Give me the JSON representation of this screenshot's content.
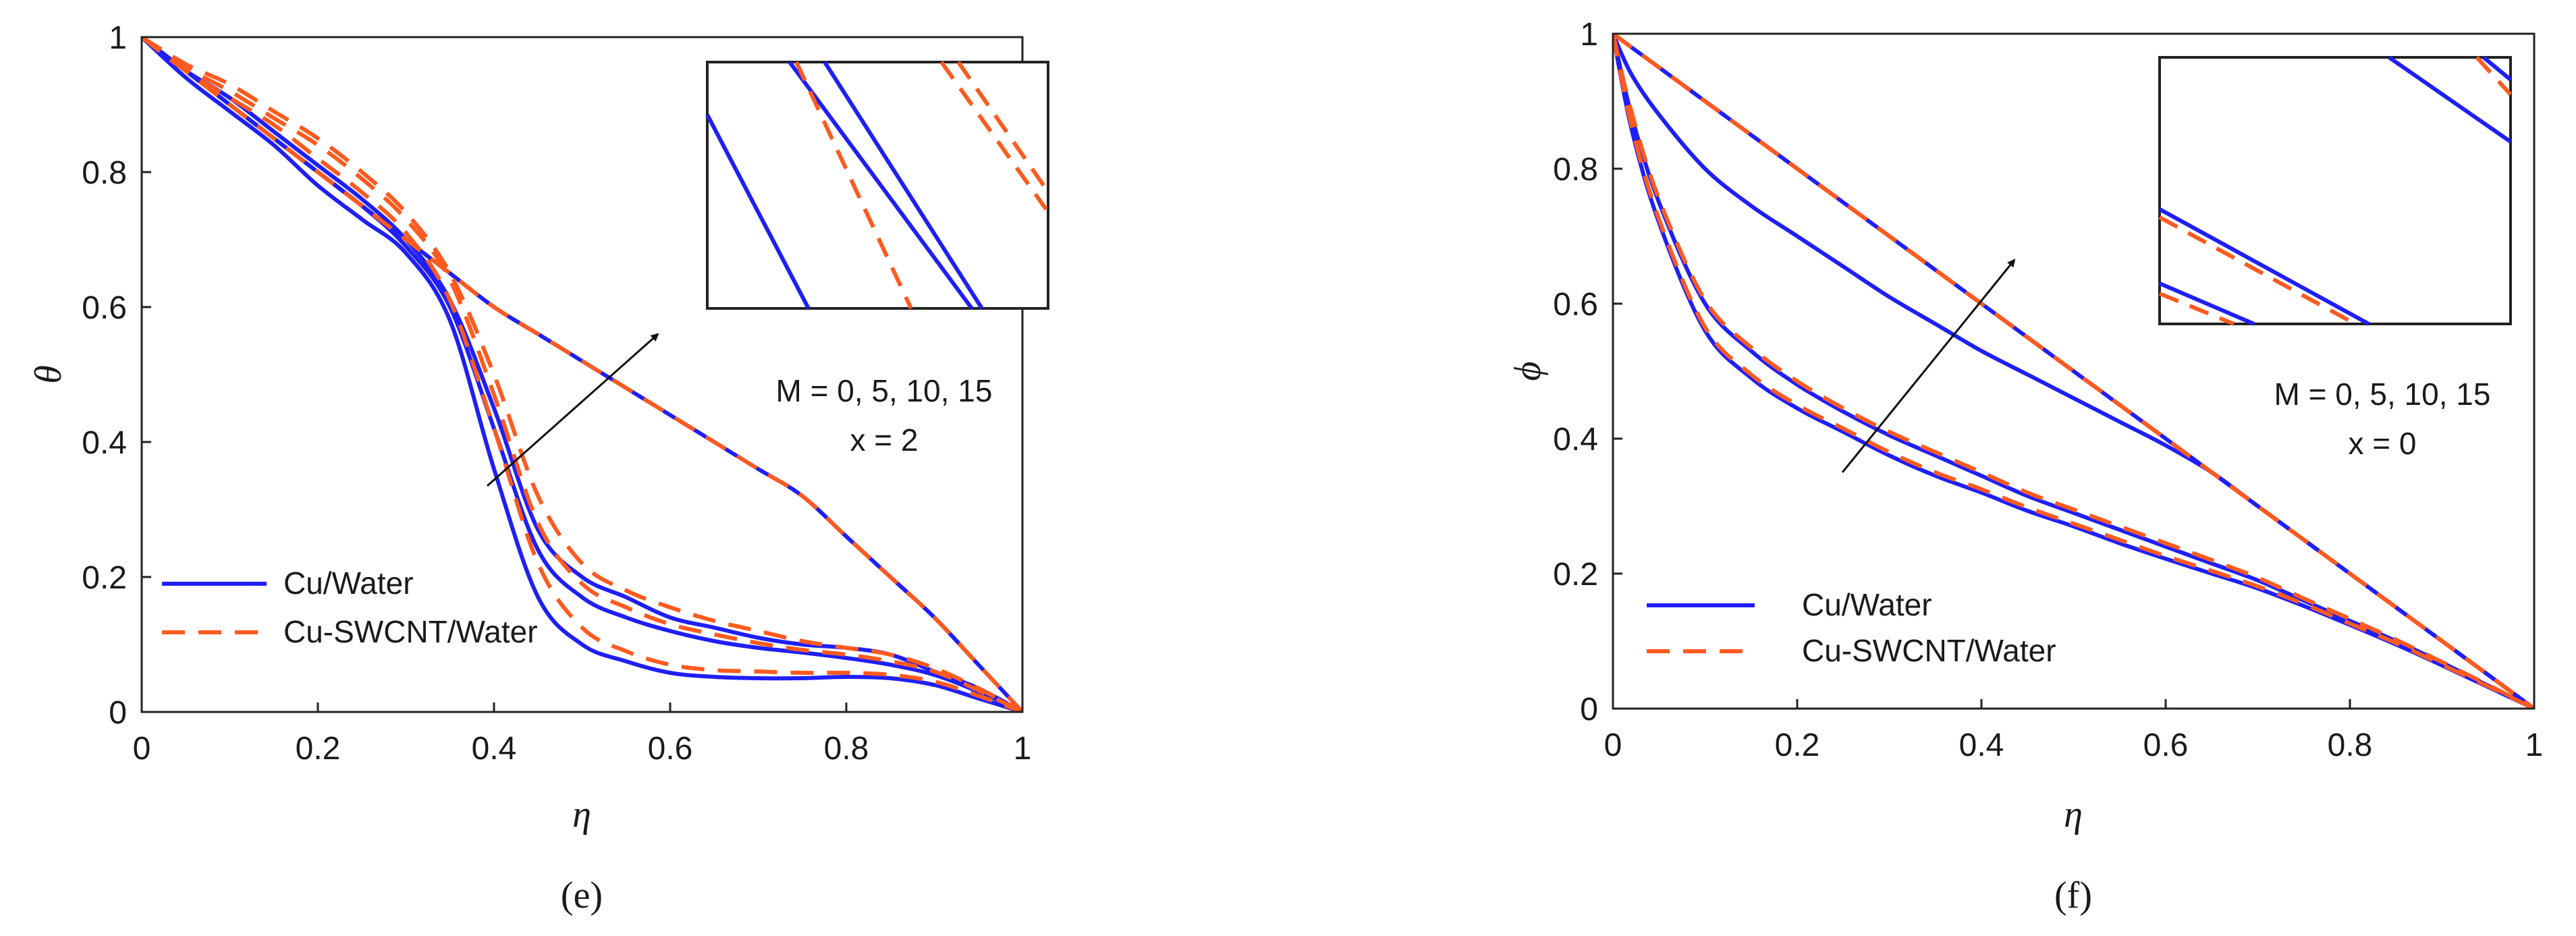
{
  "colors": {
    "cu_water": "#1f1ff5",
    "cu_swcnt_water": "#ff5a1f",
    "axis": "#222222",
    "arrow": "#111111"
  },
  "chart_data": [
    {
      "type": "line",
      "panel_label": "(e)",
      "xlabel": "η",
      "ylabel": "θ",
      "xlim": [
        0,
        1
      ],
      "ylim": [
        0,
        1
      ],
      "xticks": [
        "0",
        "0.2",
        "0.4",
        "0.6",
        "0.8",
        "1"
      ],
      "yticks": [
        "0",
        "0.2",
        "0.4",
        "0.6",
        "0.8",
        "1"
      ],
      "annotation": [
        "M = 0, 5, 10, 15",
        "x = 2"
      ],
      "legend": [
        "Cu/Water",
        "Cu-SWCNT/Water"
      ],
      "legend_position": "bottom-left",
      "grid": false,
      "inset": true,
      "x": [
        0,
        0.05,
        0.1,
        0.15,
        0.2,
        0.25,
        0.3,
        0.35,
        0.4,
        0.45,
        0.5,
        0.55,
        0.6,
        0.65,
        0.7,
        0.75,
        0.8,
        0.85,
        0.9,
        0.95,
        1
      ],
      "series": [
        {
          "name": "Cu/Water",
          "style": "solid",
          "values": [
            1,
            0.95,
            0.9,
            0.85,
            0.8,
            0.75,
            0.7,
            0.65,
            0.6,
            0.56,
            0.52,
            0.48,
            0.44,
            0.4,
            0.36,
            0.32,
            0.26,
            0.2,
            0.14,
            0.07,
            0
          ]
        },
        {
          "name": "Cu/Water",
          "style": "solid",
          "values": [
            1,
            0.95,
            0.91,
            0.86,
            0.81,
            0.76,
            0.7,
            0.61,
            0.45,
            0.27,
            0.2,
            0.17,
            0.14,
            0.125,
            0.11,
            0.1,
            0.095,
            0.085,
            0.06,
            0.035,
            0
          ]
        },
        {
          "name": "Cu/Water",
          "style": "solid",
          "values": [
            1,
            0.95,
            0.9,
            0.85,
            0.8,
            0.75,
            0.69,
            0.6,
            0.42,
            0.24,
            0.17,
            0.14,
            0.12,
            0.105,
            0.095,
            0.088,
            0.08,
            0.07,
            0.055,
            0.03,
            0
          ]
        },
        {
          "name": "Cu/Water",
          "style": "solid",
          "values": [
            1,
            0.94,
            0.89,
            0.84,
            0.78,
            0.73,
            0.68,
            0.58,
            0.36,
            0.17,
            0.1,
            0.075,
            0.058,
            0.052,
            0.05,
            0.05,
            0.052,
            0.05,
            0.04,
            0.02,
            0
          ]
        },
        {
          "name": "Cu-SWCNT/Water",
          "style": "dashed",
          "values": [
            1,
            0.95,
            0.9,
            0.85,
            0.8,
            0.75,
            0.7,
            0.65,
            0.6,
            0.56,
            0.52,
            0.48,
            0.44,
            0.4,
            0.36,
            0.32,
            0.26,
            0.2,
            0.14,
            0.07,
            0
          ]
        },
        {
          "name": "Cu-SWCNT/Water",
          "style": "dashed",
          "values": [
            1,
            0.96,
            0.93,
            0.89,
            0.85,
            0.8,
            0.74,
            0.65,
            0.5,
            0.32,
            0.22,
            0.18,
            0.155,
            0.135,
            0.12,
            0.105,
            0.095,
            0.085,
            0.065,
            0.035,
            0
          ]
        },
        {
          "name": "Cu-SWCNT/Water",
          "style": "dashed",
          "values": [
            1,
            0.955,
            0.92,
            0.88,
            0.84,
            0.79,
            0.73,
            0.64,
            0.47,
            0.28,
            0.19,
            0.155,
            0.13,
            0.115,
            0.102,
            0.092,
            0.085,
            0.075,
            0.06,
            0.032,
            0
          ]
        },
        {
          "name": "Cu-SWCNT/Water",
          "style": "dashed",
          "values": [
            1,
            0.95,
            0.91,
            0.87,
            0.82,
            0.77,
            0.71,
            0.61,
            0.42,
            0.22,
            0.125,
            0.09,
            0.07,
            0.062,
            0.06,
            0.058,
            0.058,
            0.055,
            0.045,
            0.024,
            0
          ]
        }
      ]
    },
    {
      "type": "line",
      "panel_label": "(f)",
      "xlabel": "η",
      "ylabel": "ϕ",
      "xlim": [
        0,
        1
      ],
      "ylim": [
        0,
        1
      ],
      "xticks": [
        "0",
        "0.2",
        "0.4",
        "0.6",
        "0.8",
        "1"
      ],
      "yticks": [
        "0",
        "0.2",
        "0.4",
        "0.6",
        "0.8",
        "1"
      ],
      "annotation": [
        "M = 0, 5, 10, 15",
        "x = 0"
      ],
      "legend": [
        "Cu/Water",
        "Cu-SWCNT/Water"
      ],
      "legend_position": "bottom-left",
      "grid": false,
      "inset": true,
      "x": [
        0,
        0.02,
        0.05,
        0.1,
        0.15,
        0.2,
        0.25,
        0.3,
        0.35,
        0.4,
        0.45,
        0.5,
        0.55,
        0.6,
        0.65,
        0.7,
        0.75,
        0.8,
        0.85,
        0.9,
        0.95,
        1
      ],
      "series": [
        {
          "name": "Cu/Water",
          "style": "solid",
          "values": [
            1,
            0.98,
            0.95,
            0.9,
            0.85,
            0.8,
            0.75,
            0.7,
            0.65,
            0.6,
            0.55,
            0.5,
            0.45,
            0.4,
            0.35,
            0.3,
            0.25,
            0.2,
            0.15,
            0.1,
            0.05,
            0
          ]
        },
        {
          "name": "Cu/Water",
          "style": "solid",
          "values": [
            1,
            0.94,
            0.88,
            0.8,
            0.745,
            0.7,
            0.655,
            0.61,
            0.57,
            0.53,
            0.495,
            0.46,
            0.425,
            0.39,
            0.35,
            0.3,
            0.25,
            0.2,
            0.15,
            0.1,
            0.05,
            0
          ]
        },
        {
          "name": "Cu/Water",
          "style": "solid",
          "values": [
            1,
            0.88,
            0.75,
            0.6,
            0.53,
            0.48,
            0.44,
            0.405,
            0.375,
            0.345,
            0.315,
            0.29,
            0.265,
            0.24,
            0.215,
            0.19,
            0.16,
            0.13,
            0.1,
            0.068,
            0.034,
            0
          ]
        },
        {
          "name": "Cu/Water",
          "style": "solid",
          "values": [
            1,
            0.86,
            0.72,
            0.56,
            0.49,
            0.445,
            0.41,
            0.375,
            0.345,
            0.32,
            0.293,
            0.27,
            0.245,
            0.222,
            0.2,
            0.178,
            0.152,
            0.124,
            0.095,
            0.064,
            0.032,
            0
          ]
        },
        {
          "name": "Cu-SWCNT/Water",
          "style": "dashed",
          "values": [
            1,
            0.98,
            0.95,
            0.9,
            0.85,
            0.8,
            0.75,
            0.7,
            0.65,
            0.6,
            0.55,
            0.5,
            0.45,
            0.4,
            0.35,
            0.3,
            0.25,
            0.2,
            0.15,
            0.1,
            0.05,
            0
          ]
        },
        {
          "name": "Cu-SWCNT/Water",
          "style": "dashed",
          "values": [
            1,
            0.98,
            0.95,
            0.9,
            0.85,
            0.8,
            0.75,
            0.7,
            0.65,
            0.6,
            0.55,
            0.5,
            0.45,
            0.4,
            0.35,
            0.3,
            0.25,
            0.2,
            0.15,
            0.1,
            0.05,
            0
          ]
        },
        {
          "name": "Cu-SWCNT/Water",
          "style": "dashed",
          "values": [
            1,
            0.885,
            0.755,
            0.605,
            0.535,
            0.485,
            0.445,
            0.41,
            0.38,
            0.35,
            0.32,
            0.295,
            0.27,
            0.245,
            0.22,
            0.194,
            0.163,
            0.133,
            0.102,
            0.069,
            0.035,
            0
          ]
        },
        {
          "name": "Cu-SWCNT/Water",
          "style": "dashed",
          "values": [
            1,
            0.865,
            0.725,
            0.565,
            0.495,
            0.45,
            0.415,
            0.38,
            0.35,
            0.325,
            0.298,
            0.274,
            0.25,
            0.226,
            0.204,
            0.181,
            0.155,
            0.126,
            0.097,
            0.065,
            0.033,
            0
          ]
        }
      ]
    }
  ]
}
